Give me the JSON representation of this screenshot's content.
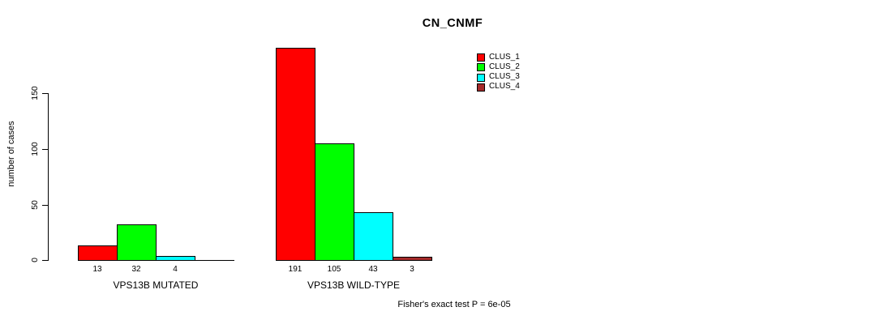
{
  "chart_data": {
    "type": "bar",
    "title": "CN_CNMF",
    "ylabel": "number of cases",
    "yticks": [
      0,
      50,
      100,
      150
    ],
    "ylim": [
      0,
      195
    ],
    "grid": false,
    "legend_position": "top-right",
    "legend": [
      {
        "name": "CLUS_1",
        "color": "#FF0000"
      },
      {
        "name": "CLUS_2",
        "color": "#00FF00"
      },
      {
        "name": "CLUS_3",
        "color": "#00FFFF"
      },
      {
        "name": "CLUS_4",
        "color": "#A52A2A"
      }
    ],
    "groups": [
      {
        "label": "VPS13B MUTATED",
        "values": [
          13,
          32,
          4,
          0
        ]
      },
      {
        "label": "VPS13B WILD-TYPE",
        "values": [
          191,
          105,
          43,
          3
        ]
      }
    ],
    "annotation": "Fisher's exact test P = 6e-05",
    "axis_color": "#000000",
    "background_color": "#FFFFFF"
  }
}
